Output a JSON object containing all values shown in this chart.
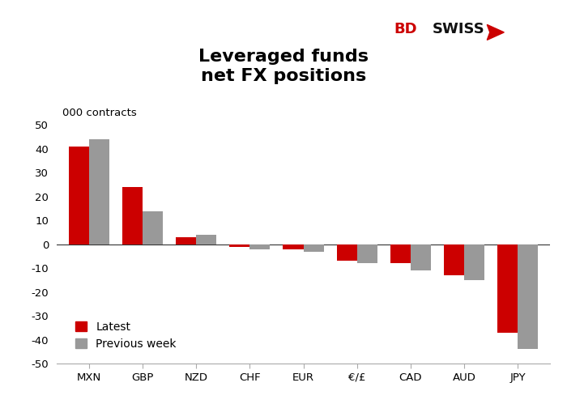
{
  "categories": [
    "MXN",
    "GBP",
    "NZD",
    "CHF",
    "EUR",
    "€/£",
    "CAD",
    "AUD",
    "JPY"
  ],
  "latest": [
    41,
    24,
    3,
    -1,
    -2,
    -7,
    -8,
    -13,
    -37
  ],
  "previous_week": [
    44,
    14,
    4,
    -2,
    -3,
    -8,
    -11,
    -15,
    -44
  ],
  "latest_color": "#cc0000",
  "previous_color": "#999999",
  "title_line1": "Leveraged funds",
  "title_line2": "net FX positions",
  "ylabel": "000 contracts",
  "ylim": [
    -50,
    55
  ],
  "yticks": [
    -50,
    -40,
    -30,
    -20,
    -10,
    0,
    10,
    20,
    30,
    40,
    50
  ],
  "legend_latest": "Latest",
  "legend_previous": "Previous week",
  "bg_color": "#ffffff",
  "bar_width": 0.38,
  "title_fontsize": 16,
  "ylabel_fontsize": 9.5,
  "tick_fontsize": 9.5,
  "legend_fontsize": 10
}
